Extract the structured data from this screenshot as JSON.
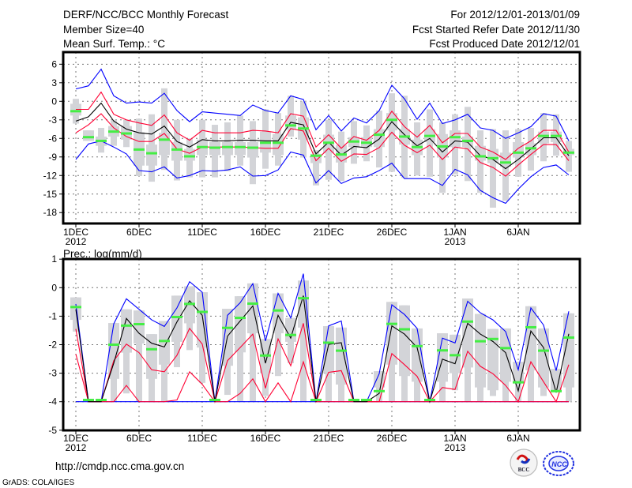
{
  "header": {
    "title": "DERF/NCC/BCC Monthly Forecast",
    "member_size": "Member Size=40",
    "variable": "Mean Surf. Temp.: °C",
    "period": "For 2012/12/01-2013/01/09",
    "started": "Fcst Started Refer Date 2012/11/30",
    "produced": "Fcst Produced Date 2012/12/01"
  },
  "footer": {
    "url": "http://cmdp.ncc.cma.gov.cn",
    "credit": "GrADS: COLA/IGES"
  },
  "logos": [
    "BCC",
    "NCC"
  ],
  "colors": {
    "mean": "#000000",
    "spread": "#ff0033",
    "extreme": "#0000ff",
    "marker": "#44ee44",
    "box": "#d3d4d8",
    "grid": "#777777"
  },
  "chart_data": [
    {
      "type": "line",
      "title": "Mean Surf. Temp.: °C",
      "ylim": [
        -20,
        8
      ],
      "yticks": [
        "6",
        "3",
        "0",
        "-3",
        "-6",
        "-9",
        "-12",
        "-15",
        "-18"
      ],
      "ytick_values": [
        6,
        3,
        0,
        -3,
        -6,
        -9,
        -12,
        -15,
        -18
      ],
      "xlim": [
        0.2,
        41
      ],
      "xticks": [
        {
          "day": 1,
          "label": "1DEC",
          "sub": "2012"
        },
        {
          "day": 6,
          "label": "6DEC",
          "sub": ""
        },
        {
          "day": 11,
          "label": "11DEC",
          "sub": ""
        },
        {
          "day": 16,
          "label": "16DEC",
          "sub": ""
        },
        {
          "day": 21,
          "label": "21DEC",
          "sub": ""
        },
        {
          "day": 26,
          "label": "26DEC",
          "sub": ""
        },
        {
          "day": 31,
          "label": "1JAN",
          "sub": "2013"
        },
        {
          "day": 36,
          "label": "6JAN",
          "sub": ""
        }
      ],
      "grid": true,
      "mean": [
        -3.2,
        -2.5,
        -0.3,
        -3.2,
        -4.5,
        -5.1,
        -5.3,
        -4.0,
        -6.5,
        -7.4,
        -6.2,
        -6.4,
        -6.4,
        -6.3,
        -6.3,
        -6.4,
        -6.4,
        -3.4,
        -3.8,
        -8.5,
        -6.6,
        -8.7,
        -7.3,
        -7.5,
        -6.1,
        -3.3,
        -5.4,
        -7.2,
        -6.0,
        -8.2,
        -6.4,
        -6.6,
        -8.8,
        -9.4,
        -10.9,
        -9.4,
        -7.7,
        -5.9,
        -5.9,
        -8.8
      ],
      "upper": [
        -1.3,
        -1.3,
        1.5,
        -2.1,
        -3.0,
        -3.5,
        -3.9,
        -2.2,
        -5.1,
        -6.3,
        -4.7,
        -5.1,
        -5.1,
        -5.1,
        -4.7,
        -4.8,
        -5.1,
        -2.0,
        -2.4,
        -7.4,
        -5.4,
        -7.6,
        -5.7,
        -6.3,
        -4.7,
        -1.6,
        -4.1,
        -5.8,
        -3.9,
        -6.7,
        -5.2,
        -5.2,
        -7.4,
        -8.2,
        -9.4,
        -7.6,
        -6.4,
        -4.7,
        -4.7,
        -8.2
      ],
      "lower": [
        -5.1,
        -3.8,
        -2.0,
        -4.3,
        -5.7,
        -6.5,
        -6.5,
        -5.2,
        -7.7,
        -8.4,
        -7.4,
        -7.4,
        -7.4,
        -7.4,
        -7.5,
        -7.6,
        -7.6,
        -4.4,
        -4.8,
        -9.6,
        -7.6,
        -9.7,
        -8.5,
        -8.6,
        -7.5,
        -5.0,
        -7.1,
        -8.3,
        -7.1,
        -9.4,
        -7.4,
        -7.7,
        -9.9,
        -10.7,
        -12.1,
        -10.3,
        -8.6,
        -7.0,
        -7.0,
        -9.6
      ],
      "max": [
        2.0,
        2.5,
        5.2,
        0.9,
        -0.3,
        -0.1,
        -0.3,
        1.3,
        -1.5,
        -3.3,
        -1.7,
        -1.9,
        -2.1,
        -2.3,
        -0.6,
        -1.5,
        -1.9,
        0.9,
        0.3,
        -4.6,
        -2.3,
        -4.8,
        -2.7,
        -3.5,
        -1.5,
        2.6,
        0.4,
        -2.9,
        -0.3,
        -3.6,
        -3.0,
        -2.1,
        -4.3,
        -4.7,
        -6.0,
        -5.1,
        -4.1,
        -2.0,
        -2.4,
        -6.4
      ],
      "min": [
        -9.4,
        -6.9,
        -6.4,
        -7.4,
        -8.5,
        -11.2,
        -11.4,
        -10.6,
        -12.4,
        -12.0,
        -11.2,
        -11.3,
        -11.1,
        -10.6,
        -12.1,
        -12.0,
        -11.1,
        -8.2,
        -8.7,
        -13.2,
        -11.2,
        -13.3,
        -12.4,
        -12.2,
        -11.2,
        -10.0,
        -12.5,
        -12.5,
        -12.5,
        -13.6,
        -11.0,
        -11.9,
        -14.4,
        -15.6,
        -16.5,
        -14.2,
        -12.2,
        -10.7,
        -10.3,
        -11.9
      ],
      "marker": [
        -1.6,
        -5.8,
        -6.4,
        -4.9,
        -5.2,
        -7.8,
        -8.4,
        -6.2,
        -7.8,
        -8.9,
        -7.4,
        -7.5,
        -7.4,
        -7.4,
        -7.5,
        -6.7,
        -6.7,
        -3.9,
        -4.4,
        -8.8,
        -6.7,
        -8.6,
        -6.5,
        -6.7,
        -5.4,
        -3.0,
        -5.7,
        -7.4,
        -5.6,
        -7.3,
        -5.8,
        -6.4,
        -8.9,
        -9.2,
        -9.9,
        -8.3,
        -7.6,
        -5.6,
        -5.6,
        -8.3
      ],
      "whisker": [
        [
          -3.6,
          0.4
        ],
        [
          -6.4,
          -4.7
        ],
        [
          -8.3,
          -4.3
        ],
        [
          -7.2,
          -3.0
        ],
        [
          -7.4,
          -3.0
        ],
        [
          -12.1,
          -2.8
        ],
        [
          -13.0,
          -2.1
        ],
        [
          -11.1,
          2.1
        ],
        [
          -12.8,
          -3.0
        ],
        [
          -12.3,
          -6.0
        ],
        [
          -12.3,
          -3.0
        ],
        [
          -12.3,
          -3.8
        ],
        [
          -11.3,
          -3.4
        ],
        [
          -10.4,
          -2.3
        ],
        [
          -13.4,
          -3.2
        ],
        [
          -10.9,
          -1.3
        ],
        [
          -10.4,
          -1.9
        ],
        [
          -5.7,
          0.9
        ],
        [
          -9.1,
          0.0
        ],
        [
          -13.6,
          -7.9
        ],
        [
          -12.7,
          -3.0
        ],
        [
          -12.9,
          -4.9
        ],
        [
          -10.1,
          -3.2
        ],
        [
          -9.7,
          -3.9
        ],
        [
          -10.7,
          -1.5
        ],
        [
          -11.4,
          1.3
        ],
        [
          -12.4,
          0.9
        ],
        [
          -12.0,
          -3.4
        ],
        [
          -12.2,
          -1.3
        ],
        [
          -14.8,
          -3.4
        ],
        [
          -11.8,
          -2.1
        ],
        [
          -12.9,
          -0.9
        ],
        [
          -14.8,
          -4.7
        ],
        [
          -17.2,
          -4.5
        ],
        [
          -16.1,
          -4.7
        ],
        [
          -12.2,
          -4.5
        ],
        [
          -11.2,
          -4.3
        ],
        [
          -9.7,
          -1.9
        ],
        [
          -8.8,
          -2.1
        ],
        [
          -11.4,
          -6.4
        ]
      ],
      "box": [
        [
          -2.3,
          -0.4
        ],
        [
          -6.4,
          -4.7
        ],
        [
          -7.2,
          -5.7
        ],
        [
          -5.7,
          -4.0
        ],
        [
          -6.2,
          -4.0
        ],
        [
          -10.4,
          -5.0
        ],
        [
          -10.4,
          -7.0
        ],
        [
          -8.7,
          -5.1
        ],
        [
          -9.6,
          -6.6
        ],
        [
          -9.6,
          -7.7
        ],
        [
          -8.7,
          -6.2
        ],
        [
          -8.7,
          -6.6
        ],
        [
          -8.7,
          -6.6
        ],
        [
          -8.7,
          -6.6
        ],
        [
          -9.1,
          -6.6
        ],
        [
          -8.3,
          -4.9
        ],
        [
          -8.7,
          -5.3
        ],
        [
          -4.5,
          -2.3
        ],
        [
          -6.2,
          -2.6
        ],
        [
          -10.0,
          -8.5
        ],
        [
          -8.4,
          -5.4
        ],
        [
          -9.9,
          -7.1
        ],
        [
          -7.4,
          -5.8
        ],
        [
          -7.4,
          -5.8
        ],
        [
          -7.4,
          -4.5
        ],
        [
          -4.7,
          -1.9
        ],
        [
          -7.0,
          -4.5
        ],
        [
          -8.7,
          -6.2
        ],
        [
          -6.6,
          -4.5
        ],
        [
          -9.1,
          -5.3
        ],
        [
          -7.4,
          -4.7
        ],
        [
          -7.4,
          -5.7
        ],
        [
          -9.6,
          -7.2
        ],
        [
          -10.0,
          -7.7
        ],
        [
          -10.6,
          -8.3
        ],
        [
          -9.1,
          -6.6
        ],
        [
          -8.7,
          -6.8
        ],
        [
          -6.8,
          -4.9
        ],
        [
          -6.6,
          -4.9
        ],
        [
          -8.7,
          -7.7
        ]
      ]
    },
    {
      "type": "line",
      "title": "Prec.: log(mm/d)",
      "ylim": [
        -5,
        1
      ],
      "yticks": [
        "1",
        "0",
        "-1",
        "-2",
        "-3",
        "-4",
        "-5"
      ],
      "ytick_values": [
        1,
        0,
        -1,
        -2,
        -3,
        -4,
        -5
      ],
      "xlim": [
        0.2,
        41
      ],
      "xticks": [
        {
          "day": 1,
          "label": "1DEC",
          "sub": "2012"
        },
        {
          "day": 6,
          "label": "6DEC",
          "sub": ""
        },
        {
          "day": 11,
          "label": "11DEC",
          "sub": ""
        },
        {
          "day": 16,
          "label": "16DEC",
          "sub": ""
        },
        {
          "day": 21,
          "label": "21DEC",
          "sub": ""
        },
        {
          "day": 26,
          "label": "26DEC",
          "sub": ""
        },
        {
          "day": 31,
          "label": "1JAN",
          "sub": "2013"
        },
        {
          "day": 36,
          "label": "6JAN",
          "sub": ""
        }
      ],
      "grid": true,
      "mean": [
        -0.76,
        -4.0,
        -4.0,
        -2.65,
        -1.08,
        -1.6,
        -1.95,
        -2.08,
        -1.2,
        -0.46,
        -0.97,
        -4.0,
        -1.7,
        -1.17,
        -0.64,
        -2.65,
        -0.97,
        -1.77,
        -0.28,
        -4.0,
        -1.99,
        -1.93,
        -4.0,
        -4.0,
        -3.71,
        -1.34,
        -1.63,
        -2.1,
        -4.0,
        -2.51,
        -2.67,
        -1.25,
        -1.63,
        -1.89,
        -2.28,
        -3.62,
        -1.52,
        -2.1,
        -3.68,
        -1.62
      ],
      "upper": [
        -1.45,
        -4.0,
        -4.0,
        -2.56,
        -1.98,
        -2.28,
        -2.88,
        -2.95,
        -2.37,
        -1.43,
        -1.98,
        -4.0,
        -2.56,
        -2.1,
        -1.63,
        -3.53,
        -1.8,
        -2.74,
        -1.25,
        -4.0,
        -2.97,
        -2.91,
        -4.0,
        -4.0,
        -4.0,
        -2.31,
        -2.7,
        -3.11,
        -4.0,
        -3.5,
        -3.57,
        -2.23,
        -2.76,
        -3.02,
        -3.43,
        -4.0,
        -2.6,
        -3.3,
        -4.0,
        -2.7
      ],
      "lower": [
        -2.33,
        -4.0,
        -4.0,
        -4.0,
        -3.43,
        -4.0,
        -4.0,
        -4.0,
        -3.94,
        -2.95,
        -3.39,
        -4.0,
        -4.0,
        -3.71,
        -3.2,
        -4.0,
        -3.34,
        -4.0,
        -2.6,
        -4.0,
        -4.0,
        -4.0,
        -4.0,
        -4.0,
        -4.0,
        -4.0,
        -4.0,
        -4.0,
        -4.0,
        -4.0,
        -4.0,
        -4.0,
        -4.0,
        -4.0,
        -4.0,
        -4.0,
        -4.0,
        -4.0,
        -4.0,
        -4.0
      ],
      "max": [
        -0.57,
        -4.0,
        -4.0,
        -1.27,
        -0.39,
        -0.76,
        -1.13,
        -1.36,
        -0.71,
        0.21,
        -0.16,
        -4.0,
        -0.97,
        -0.53,
        0.14,
        -1.87,
        -0.2,
        -1.06,
        0.49,
        -4.0,
        -1.34,
        -1.17,
        -4.0,
        -4.0,
        -3.02,
        -0.6,
        -0.94,
        -1.43,
        -4.0,
        -1.77,
        -1.94,
        -0.48,
        -0.88,
        -1.13,
        -1.54,
        -2.88,
        -0.71,
        -1.31,
        -2.91,
        -0.83
      ],
      "min": [
        -4,
        -4,
        -4,
        -4,
        -4,
        -4,
        -4,
        -4,
        -4,
        -4,
        -4,
        -4,
        -4,
        -4,
        -4,
        -4,
        -4,
        -4,
        -4,
        -4,
        -4,
        -4,
        -4,
        -4,
        -4,
        -4,
        -4,
        -4,
        -4,
        -4,
        -4,
        -4,
        -4,
        -4,
        -4,
        -4,
        -4,
        -4,
        -4,
        -4
      ],
      "marker": [
        -0.68,
        -3.94,
        -3.94,
        -2.0,
        -1.33,
        -1.28,
        -2.16,
        -1.87,
        -1.03,
        -0.57,
        -0.85,
        -3.94,
        -1.41,
        -1.06,
        -0.56,
        -2.38,
        -0.8,
        -1.66,
        -0.37,
        -3.94,
        -1.93,
        -2.21,
        -3.94,
        -3.94,
        -3.63,
        -1.27,
        -1.46,
        -2.05,
        -3.94,
        -2.2,
        -2.37,
        -1.19,
        -1.88,
        -1.8,
        -2.12,
        -3.32,
        -1.39,
        -2.21,
        -3.63,
        -1.75
      ],
      "whisker": [
        [
          -1.54,
          -0.34
        ],
        null,
        null,
        [
          -4,
          -1.24
        ],
        [
          -3.71,
          -0.76
        ],
        [
          -4,
          -0.8
        ],
        [
          -4,
          -1.63
        ],
        [
          -4,
          -1.17
        ],
        [
          -2.79,
          -0.28
        ],
        [
          -2.19,
          0.05
        ],
        [
          -3.34,
          -0.16
        ],
        null,
        [
          -3.76,
          -0.74
        ],
        [
          -4,
          -0.3
        ],
        [
          -4,
          0.15
        ],
        [
          -3.8,
          -1.8
        ],
        [
          -3.1,
          -0.2
        ],
        [
          -2.65,
          -1.06
        ],
        [
          -4,
          0.25
        ],
        null,
        [
          -4,
          -1.35
        ],
        [
          -4,
          -1.4
        ],
        null,
        null,
        [
          -4,
          -2.93
        ],
        [
          -4,
          -0.5
        ],
        [
          -4,
          -0.62
        ],
        [
          -4,
          -1.43
        ],
        null,
        [
          -4,
          -1.6
        ],
        [
          -3.6,
          -1.65
        ],
        [
          -4,
          -0.38
        ],
        [
          -4,
          -0.92
        ],
        [
          -3.8,
          -1.45
        ],
        [
          -4,
          -1.43
        ],
        [
          -4,
          -2.6
        ],
        [
          -4,
          -0.65
        ],
        [
          -3.8,
          -1.43
        ],
        [
          -3.63,
          -2.85
        ],
        [
          -4,
          -0.9
        ]
      ],
      "box": [
        [
          -1.13,
          -0.34
        ],
        null,
        null,
        [
          -3.2,
          -1.24
        ],
        [
          -2.28,
          -0.76
        ],
        [
          -1.96,
          -0.8
        ],
        [
          -3.2,
          -1.63
        ],
        [
          -2.7,
          -1.17
        ],
        [
          -1.9,
          -0.28
        ],
        [
          -1.25,
          0.05
        ],
        [
          -2.1,
          -0.16
        ],
        null,
        [
          -2.74,
          -0.74
        ],
        [
          -2.27,
          -0.3
        ],
        [
          -1.6,
          0.15
        ],
        [
          -3.0,
          -1.8
        ],
        [
          -1.6,
          -0.2
        ],
        [
          -1.9,
          -1.06
        ],
        [
          -1.4,
          0.25
        ],
        null,
        [
          -3.0,
          -1.35
        ],
        [
          -3.4,
          -1.4
        ],
        null,
        null,
        [
          -3.5,
          -2.93
        ],
        [
          -2.7,
          -0.5
        ],
        [
          -3.1,
          -0.62
        ],
        [
          -3.3,
          -1.43
        ],
        null,
        [
          -3.3,
          -1.6
        ],
        [
          -3.0,
          -1.65
        ],
        [
          -2.8,
          -0.38
        ],
        [
          -3.5,
          -0.92
        ],
        [
          -3.6,
          -1.45
        ],
        [
          -3.3,
          -1.43
        ],
        [
          -3.3,
          -2.6
        ],
        [
          -2.9,
          -0.65
        ],
        [
          -3.5,
          -1.43
        ],
        [
          -3.63,
          -2.85
        ],
        [
          -3.5,
          -0.9
        ]
      ]
    }
  ]
}
